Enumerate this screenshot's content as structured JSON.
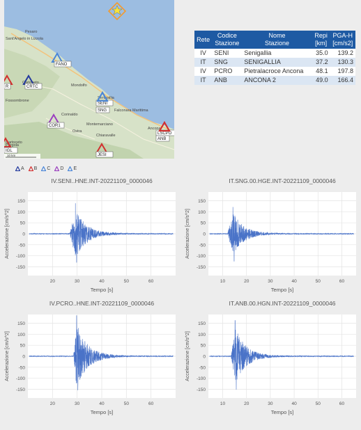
{
  "map": {
    "towns": [
      {
        "name": "Pesaro"
      },
      {
        "name": "Sant'Angelo in Lizzola"
      },
      {
        "name": "Cartoceto"
      },
      {
        "name": "Mondolfo"
      },
      {
        "name": "Fossombrone"
      },
      {
        "name": "Senigallia"
      },
      {
        "name": "Corinaldo"
      },
      {
        "name": "Montemarciano"
      },
      {
        "name": "Falconara Marittima"
      },
      {
        "name": "Ostra"
      },
      {
        "name": "Chiaravalle"
      },
      {
        "name": "Ancona"
      },
      {
        "name": "Cartoceto"
      },
      {
        "name": "Pergola"
      }
    ],
    "stations": [
      {
        "code": "FANO",
        "color": "#4a86d8"
      },
      {
        "code": "CRTC",
        "color": "#243a9e"
      },
      {
        "code": "SENI",
        "color": "#4a86d8"
      },
      {
        "code": "SNG",
        "color": "#4a86d8"
      },
      {
        "code": "COR1",
        "color": "#9b3fbf"
      },
      {
        "code": "JESI",
        "color": "#d32f2f"
      },
      {
        "code": "LSCPO",
        "color": "#d32f2f"
      },
      {
        "code": "ANB",
        "color": "#d32f2f"
      },
      {
        "code": "R",
        "color": "#d32f2f"
      },
      {
        "code": "IGL",
        "color": "#d32f2f"
      }
    ],
    "epicenter_icon": "star-icon",
    "scale_label": "10 km"
  },
  "legend": [
    {
      "label": "A",
      "color": "#243a9e"
    },
    {
      "label": "B",
      "color": "#d32f2f"
    },
    {
      "label": "C",
      "color": "#4a86d8"
    },
    {
      "label": "D",
      "color": "#9b3fbf"
    },
    {
      "label": "E",
      "color": "#4a86d8"
    }
  ],
  "table": {
    "headers": [
      {
        "l1": "Rete",
        "l2": ""
      },
      {
        "l1": "Codice",
        "l2": "Stazione"
      },
      {
        "l1": "Nome",
        "l2": "Stazione"
      },
      {
        "l1": "Repi",
        "l2": "[km]"
      },
      {
        "l1": "PGA-H",
        "l2": "[cm/s2]"
      }
    ],
    "rows": [
      {
        "rete": "IV",
        "codice": "SENI",
        "nome": "Senigallia",
        "repi": "35.0",
        "pga": "139.2"
      },
      {
        "rete": "IT",
        "codice": "SNG",
        "nome": "SENIGALLIA",
        "repi": "37.2",
        "pga": "130.3"
      },
      {
        "rete": "IV",
        "codice": "PCRO",
        "nome": "Pietralacroce Ancona",
        "repi": "48.1",
        "pga": "197.8"
      },
      {
        "rete": "IT",
        "codice": "ANB",
        "nome": "ANCONA 2",
        "repi": "49.0",
        "pga": "166.4"
      }
    ]
  },
  "chart_data": [
    {
      "type": "line",
      "title": "IV.SENI..HNE.INT-20221109_0000046",
      "xlabel": "Tempo [s]",
      "ylabel": "Accelerazione [cm/s^2]",
      "xlim": [
        10,
        70
      ],
      "ylim": [
        -190,
        190
      ],
      "xticks": [
        20,
        30,
        40,
        50,
        60
      ],
      "yticks": [
        150,
        100,
        50,
        0,
        -50,
        -100,
        -150
      ],
      "onset": 27.0,
      "peak_time": 29.3,
      "peak_pos": 139,
      "peak_neg": -130,
      "series": [
        {
          "color": "#4a73c8"
        }
      ]
    },
    {
      "type": "line",
      "title": "IT.SNG.00.HGE.INT-20221109_0000046",
      "xlabel": "Tempo [s]",
      "ylabel": "Accelerazione [cm/s^2]",
      "xlim": [
        4,
        66
      ],
      "ylim": [
        -190,
        190
      ],
      "xticks": [
        10,
        20,
        30,
        40,
        50,
        60
      ],
      "yticks": [
        150,
        100,
        50,
        0,
        -50,
        -100,
        -150
      ],
      "onset": 12.0,
      "peak_time": 14.3,
      "peak_pos": 122,
      "peak_neg": -125,
      "series": [
        {
          "color": "#4a73c8"
        }
      ]
    },
    {
      "type": "line",
      "title": "IV.PCRO..HNE.INT-20221109_0000046",
      "xlabel": "Tempo [s]",
      "ylabel": "Accelerazione [cm/s^2]",
      "xlim": [
        10,
        70
      ],
      "ylim": [
        -190,
        190
      ],
      "xticks": [
        20,
        30,
        40,
        50,
        60
      ],
      "yticks": [
        150,
        100,
        50,
        0,
        -50,
        -100,
        -150
      ],
      "onset": 28.5,
      "peak_time": 29.8,
      "peak_pos": 185,
      "peak_neg": -155,
      "series": [
        {
          "color": "#4a73c8"
        }
      ]
    },
    {
      "type": "line",
      "title": "IT.ANB.00.HGN.INT-20221109_0000046",
      "xlabel": "Tempo [s]",
      "ylabel": "Accelerazione [cm/s^2]",
      "xlim": [
        4,
        66
      ],
      "ylim": [
        -190,
        190
      ],
      "xticks": [
        10,
        20,
        30,
        40,
        50,
        60
      ],
      "yticks": [
        150,
        100,
        50,
        0,
        -50,
        -100,
        -150
      ],
      "onset": 13.5,
      "peak_time": 15.2,
      "peak_pos": 163,
      "peak_neg": -152,
      "series": [
        {
          "color": "#4a73c8"
        }
      ]
    }
  ]
}
